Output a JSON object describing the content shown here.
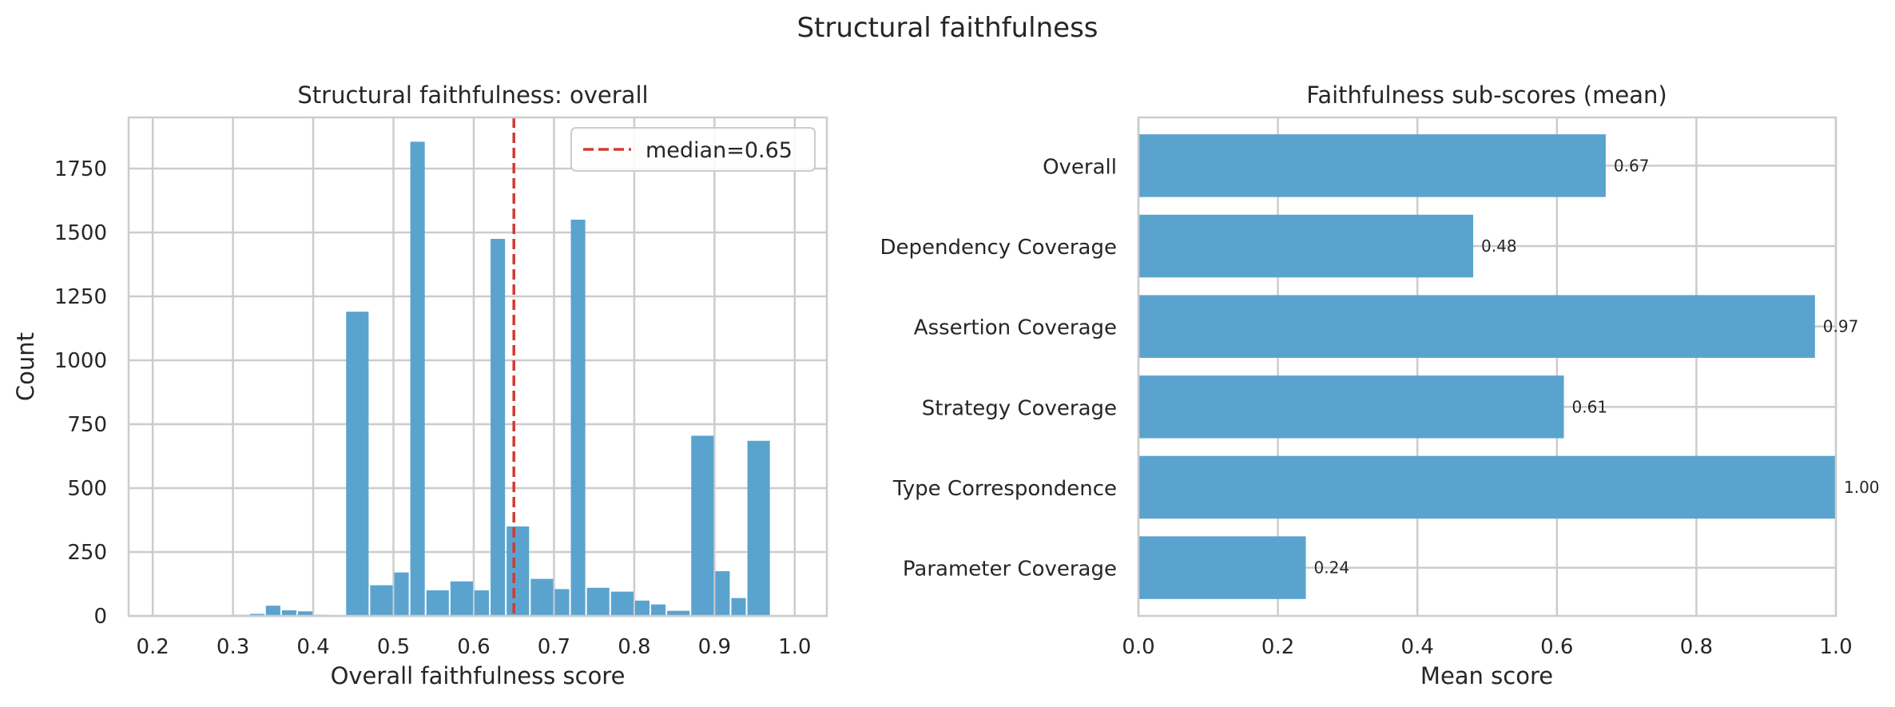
{
  "figure": {
    "title": "Structural faithfulness"
  },
  "chart_data": [
    {
      "type": "bar",
      "subtype": "histogram",
      "title": "Structural faithfulness: overall",
      "xlabel": "Overall faithfulness score",
      "ylabel": "Count",
      "xlim": [
        0.17,
        1.04
      ],
      "ylim": [
        0,
        1950
      ],
      "xticks": [
        "0.2",
        "0.3",
        "0.4",
        "0.5",
        "0.6",
        "0.7",
        "0.8",
        "0.9",
        "1.0"
      ],
      "yticks": [
        "0",
        "250",
        "500",
        "750",
        "1000",
        "1250",
        "1500",
        "1750"
      ],
      "grid": true,
      "bar_color": "#5ba3cf",
      "bins": [
        {
          "x0": 0.2,
          "x1": 0.22,
          "count": 2
        },
        {
          "x0": 0.22,
          "x1": 0.24,
          "count": 2
        },
        {
          "x0": 0.24,
          "x1": 0.26,
          "count": 2
        },
        {
          "x0": 0.26,
          "x1": 0.28,
          "count": 2
        },
        {
          "x0": 0.28,
          "x1": 0.3,
          "count": 3
        },
        {
          "x0": 0.3,
          "x1": 0.32,
          "count": 4
        },
        {
          "x0": 0.32,
          "x1": 0.34,
          "count": 8
        },
        {
          "x0": 0.34,
          "x1": 0.36,
          "count": 40
        },
        {
          "x0": 0.36,
          "x1": 0.38,
          "count": 22
        },
        {
          "x0": 0.38,
          "x1": 0.4,
          "count": 18
        },
        {
          "x0": 0.4,
          "x1": 0.42,
          "count": 4
        },
        {
          "x0": 0.42,
          "x1": 0.44,
          "count": 2
        },
        {
          "x0": 0.44,
          "x1": 0.47,
          "count": 1190
        },
        {
          "x0": 0.47,
          "x1": 0.5,
          "count": 120
        },
        {
          "x0": 0.5,
          "x1": 0.52,
          "count": 170
        },
        {
          "x0": 0.52,
          "x1": 0.54,
          "count": 1855
        },
        {
          "x0": 0.54,
          "x1": 0.57,
          "count": 100
        },
        {
          "x0": 0.57,
          "x1": 0.6,
          "count": 135
        },
        {
          "x0": 0.6,
          "x1": 0.62,
          "count": 100
        },
        {
          "x0": 0.62,
          "x1": 0.64,
          "count": 1475
        },
        {
          "x0": 0.64,
          "x1": 0.67,
          "count": 350
        },
        {
          "x0": 0.67,
          "x1": 0.7,
          "count": 145
        },
        {
          "x0": 0.7,
          "x1": 0.72,
          "count": 105
        },
        {
          "x0": 0.72,
          "x1": 0.74,
          "count": 1550
        },
        {
          "x0": 0.74,
          "x1": 0.77,
          "count": 110
        },
        {
          "x0": 0.77,
          "x1": 0.8,
          "count": 95
        },
        {
          "x0": 0.8,
          "x1": 0.82,
          "count": 60
        },
        {
          "x0": 0.82,
          "x1": 0.84,
          "count": 45
        },
        {
          "x0": 0.84,
          "x1": 0.87,
          "count": 20
        },
        {
          "x0": 0.87,
          "x1": 0.9,
          "count": 705
        },
        {
          "x0": 0.9,
          "x1": 0.92,
          "count": 175
        },
        {
          "x0": 0.92,
          "x1": 0.94,
          "count": 70
        },
        {
          "x0": 0.94,
          "x1": 0.97,
          "count": 685
        }
      ],
      "reference_line": {
        "x": 0.65,
        "color": "#d03b34",
        "style": "dashed",
        "label": "median=0.65"
      },
      "legend": {
        "position": "top-right",
        "entries": [
          "median=0.65"
        ]
      }
    },
    {
      "type": "bar",
      "orientation": "horizontal",
      "title": "Faithfulness sub-scores (mean)",
      "xlabel": "Mean score",
      "ylabel": "",
      "xlim": [
        0,
        1.0
      ],
      "xticks": [
        "0.0",
        "0.2",
        "0.4",
        "0.6",
        "0.8",
        "1.0"
      ],
      "grid": true,
      "bar_color": "#5ba3cf",
      "categories": [
        "Overall",
        "Dependency Coverage",
        "Assertion Coverage",
        "Strategy Coverage",
        "Type Correspondence",
        "Parameter Coverage"
      ],
      "values": [
        0.67,
        0.48,
        0.97,
        0.61,
        1.0,
        0.24
      ],
      "value_labels": [
        "0.67",
        "0.48",
        "0.97",
        "0.61",
        "1.00",
        "0.24"
      ]
    }
  ]
}
